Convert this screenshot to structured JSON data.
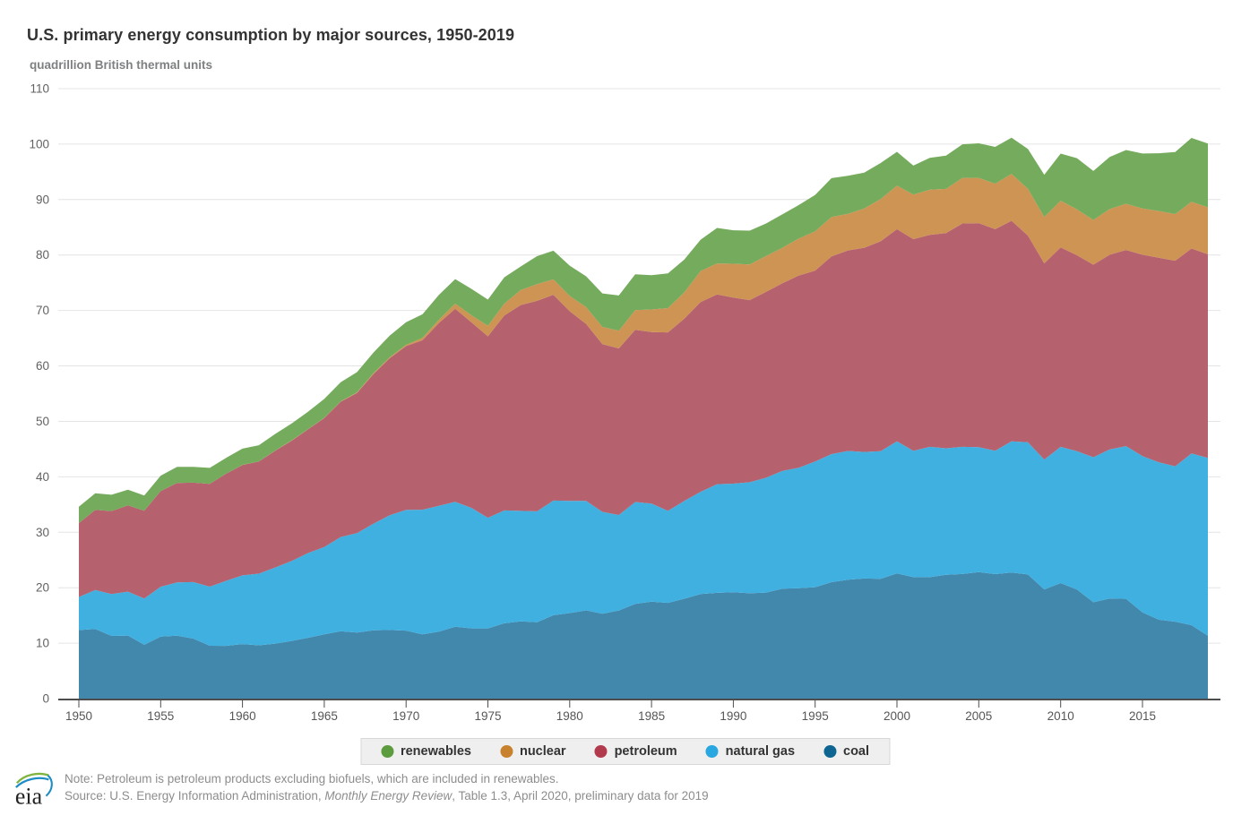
{
  "title": "U.S. primary energy consumption by major sources, 1950-2019",
  "units_label": "quadrillion British thermal units",
  "legend": {
    "items": [
      {
        "label": "renewables",
        "color": "#5d9c3e"
      },
      {
        "label": "nuclear",
        "color": "#c8822d"
      },
      {
        "label": "petroleum",
        "color": "#b13a4c"
      },
      {
        "label": "natural gas",
        "color": "#29a7e0"
      },
      {
        "label": "coal",
        "color": "#0e6591"
      }
    ]
  },
  "footer": {
    "note": "Note: Petroleum is petroleum products excluding biofuels, which are included in renewables.",
    "source_prefix": "Source: U.S. Energy Information Administration, ",
    "source_italic": "Monthly Energy Review",
    "source_suffix": ", Table 1.3, April 2020, preliminary data for 2019",
    "logo_text": "eia"
  },
  "chart_data": {
    "type": "area",
    "stacked": true,
    "title": "U.S. primary energy consumption by major sources, 1950-2019",
    "xlabel": "",
    "ylabel": "quadrillion British thermal units",
    "ylim": [
      0,
      110
    ],
    "yticks": [
      0,
      10,
      20,
      30,
      40,
      50,
      60,
      70,
      80,
      90,
      100,
      110
    ],
    "xticks": [
      1950,
      1955,
      1960,
      1965,
      1970,
      1975,
      1980,
      1985,
      1990,
      1995,
      2000,
      2005,
      2010,
      2015
    ],
    "grid": "horizontal",
    "legend_position": "bottom",
    "stack_order": "bottom-to-top",
    "x": [
      1950,
      1951,
      1952,
      1953,
      1954,
      1955,
      1956,
      1957,
      1958,
      1959,
      1960,
      1961,
      1962,
      1963,
      1964,
      1965,
      1966,
      1967,
      1968,
      1969,
      1970,
      1971,
      1972,
      1973,
      1974,
      1975,
      1976,
      1977,
      1978,
      1979,
      1980,
      1981,
      1982,
      1983,
      1984,
      1985,
      1986,
      1987,
      1988,
      1989,
      1990,
      1991,
      1992,
      1993,
      1994,
      1995,
      1996,
      1997,
      1998,
      1999,
      2000,
      2001,
      2002,
      2003,
      2004,
      2005,
      2006,
      2007,
      2008,
      2009,
      2010,
      2011,
      2012,
      2013,
      2014,
      2015,
      2016,
      2017,
      2018,
      2019
    ],
    "series": [
      {
        "name": "coal",
        "area_color": "#4287ac",
        "dot_color": "#0e6591",
        "values": [
          12.35,
          12.55,
          11.31,
          11.37,
          9.71,
          11.17,
          11.35,
          10.82,
          9.53,
          9.52,
          9.84,
          9.61,
          9.91,
          10.41,
          10.96,
          11.58,
          12.14,
          11.91,
          12.33,
          12.38,
          12.26,
          11.6,
          12.08,
          12.97,
          12.66,
          12.66,
          13.58,
          13.92,
          13.77,
          15.04,
          15.42,
          15.91,
          15.32,
          15.89,
          17.07,
          17.48,
          17.26,
          18.01,
          18.85,
          19.07,
          19.17,
          18.99,
          19.12,
          19.84,
          19.91,
          20.09,
          21.0,
          21.45,
          21.66,
          21.62,
          22.58,
          21.91,
          21.9,
          22.32,
          22.47,
          22.8,
          22.45,
          22.75,
          22.39,
          19.69,
          20.83,
          19.66,
          17.38,
          18.04,
          17.99,
          15.55,
          14.23,
          13.87,
          13.25,
          11.32
        ]
      },
      {
        "name": "natural gas",
        "area_color": "#3fb0e0",
        "dot_color": "#29a7e0",
        "values": [
          5.97,
          7.05,
          7.55,
          7.91,
          8.33,
          9.0,
          9.61,
          10.19,
          10.66,
          11.72,
          12.39,
          12.93,
          13.73,
          14.4,
          15.29,
          15.77,
          17.0,
          17.94,
          19.21,
          20.68,
          21.79,
          22.47,
          22.7,
          22.51,
          21.73,
          19.95,
          20.35,
          19.93,
          20.0,
          20.67,
          20.24,
          19.75,
          18.36,
          17.22,
          18.39,
          17.7,
          16.59,
          17.64,
          18.45,
          19.6,
          19.6,
          20.03,
          20.71,
          21.23,
          21.73,
          22.67,
          23.09,
          23.22,
          22.83,
          23.01,
          23.82,
          22.77,
          23.51,
          22.83,
          22.93,
          22.56,
          22.24,
          23.66,
          23.84,
          23.42,
          24.57,
          24.96,
          26.15,
          26.9,
          27.55,
          28.19,
          28.4,
          28.03,
          30.96,
          32.1
        ]
      },
      {
        "name": "petroleum",
        "area_color": "#b6616e",
        "dot_color": "#b13a4c",
        "values": [
          13.32,
          14.43,
          14.96,
          15.56,
          15.84,
          17.25,
          17.94,
          17.93,
          18.53,
          19.32,
          19.92,
          20.22,
          21.05,
          21.7,
          22.3,
          23.25,
          24.4,
          25.28,
          26.98,
          28.34,
          29.52,
          30.56,
          32.95,
          34.84,
          33.45,
          32.73,
          35.17,
          37.12,
          37.97,
          37.12,
          34.2,
          31.93,
          30.23,
          30.05,
          31.05,
          30.92,
          32.2,
          32.87,
          34.22,
          34.21,
          33.55,
          32.85,
          33.53,
          33.84,
          34.67,
          34.44,
          35.67,
          36.16,
          36.82,
          37.84,
          38.26,
          38.19,
          38.22,
          38.81,
          40.29,
          40.39,
          39.96,
          39.77,
          37.28,
          35.4,
          35.97,
          35.33,
          34.73,
          35.11,
          35.37,
          36.32,
          36.89,
          37.07,
          36.95,
          36.72
        ]
      },
      {
        "name": "nuclear",
        "area_color": "#cd9454",
        "dot_color": "#c8822d",
        "values": [
          0,
          0,
          0,
          0,
          0,
          0,
          0,
          0,
          0,
          0,
          0.01,
          0.02,
          0.03,
          0.04,
          0.04,
          0.04,
          0.06,
          0.09,
          0.14,
          0.15,
          0.24,
          0.41,
          0.58,
          0.91,
          1.27,
          1.9,
          2.11,
          2.7,
          3.02,
          2.78,
          2.74,
          3.01,
          3.13,
          3.2,
          3.55,
          4.08,
          4.38,
          4.75,
          5.59,
          5.6,
          6.1,
          6.42,
          6.48,
          6.41,
          6.69,
          7.08,
          7.09,
          6.6,
          7.07,
          7.61,
          7.86,
          8.03,
          8.15,
          7.96,
          8.22,
          8.16,
          8.21,
          8.46,
          8.43,
          8.36,
          8.43,
          8.27,
          8.06,
          8.24,
          8.34,
          8.34,
          8.42,
          8.42,
          8.44,
          8.46
        ]
      },
      {
        "name": "renewables",
        "area_color": "#75ab5c",
        "dot_color": "#5d9c3e",
        "values": [
          2.98,
          2.99,
          2.94,
          2.85,
          2.75,
          2.78,
          2.88,
          2.84,
          2.89,
          2.86,
          2.93,
          2.91,
          3.01,
          3.06,
          3.14,
          3.4,
          3.46,
          3.65,
          3.73,
          3.94,
          4.08,
          4.27,
          4.47,
          4.43,
          4.77,
          4.72,
          4.77,
          4.25,
          5.04,
          5.17,
          5.49,
          5.56,
          6.03,
          6.34,
          6.46,
          6.19,
          6.25,
          5.91,
          5.65,
          6.41,
          6.04,
          6.1,
          5.85,
          6.04,
          6.02,
          6.56,
          7.01,
          6.87,
          6.49,
          6.51,
          6.1,
          5.23,
          5.74,
          6.01,
          6.06,
          6.23,
          6.64,
          6.52,
          7.19,
          7.6,
          8.49,
          9.24,
          8.84,
          9.4,
          9.69,
          9.9,
          10.41,
          11.18,
          11.52,
          11.51
        ]
      }
    ]
  }
}
